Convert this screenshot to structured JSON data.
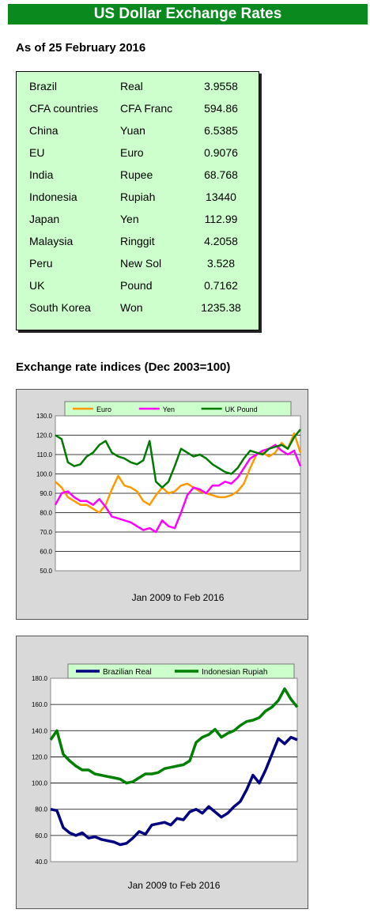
{
  "banner": "US Dollar Exchange Rates",
  "as_of": "As of 25 February 2016",
  "rates": [
    {
      "country": "Brazil",
      "currency": "Real",
      "value": "3.9558"
    },
    {
      "country": "CFA countries",
      "currency": "CFA Franc",
      "value": "594.86"
    },
    {
      "country": "China",
      "currency": "Yuan",
      "value": "6.5385"
    },
    {
      "country": "EU",
      "currency": "Euro",
      "value": "0.9076"
    },
    {
      "country": "India",
      "currency": "Rupee",
      "value": "68.768"
    },
    {
      "country": "Indonesia",
      "currency": "Rupiah",
      "value": "13440"
    },
    {
      "country": "Japan",
      "currency": "Yen",
      "value": "112.99"
    },
    {
      "country": "Malaysia",
      "currency": "Ringgit",
      "value": "4.2058"
    },
    {
      "country": "Peru",
      "currency": "New Sol",
      "value": "3.528"
    },
    {
      "country": "UK",
      "currency": "Pound",
      "value": "0.7162"
    },
    {
      "country": "South Korea",
      "currency": "Won",
      "value": "1235.38"
    }
  ],
  "section_title": "Exchange rate indices (Dec 2003=100)",
  "colors": {
    "banner": "#0a8a1e",
    "table_bg": "#ccffcc",
    "chart_frame": "#d9d9d9"
  },
  "chart_data": [
    {
      "type": "line",
      "title": "",
      "xlabel": "Jan 2009 to Feb 2016",
      "ylabel": "",
      "x_range": [
        "Jan 2009",
        "Feb 2016"
      ],
      "ylim": [
        50,
        130
      ],
      "yticks": [
        "50.0",
        "60.0",
        "70.0",
        "80.0",
        "90.0",
        "100.0",
        "110.0",
        "120.0",
        "130.0"
      ],
      "grid": true,
      "legend": "top",
      "series": [
        {
          "name": "Euro",
          "color": "#ff9900",
          "values": [
            96,
            93,
            88,
            86,
            84,
            84,
            82,
            80,
            84,
            92,
            99,
            94,
            93,
            91,
            86,
            84,
            89,
            93,
            90,
            91,
            94,
            95,
            93,
            91,
            90,
            89,
            88,
            88,
            89,
            91,
            95,
            103,
            110,
            111,
            109,
            111,
            116,
            113,
            121,
            111
          ]
        },
        {
          "name": "Yen",
          "color": "#ff00ff",
          "values": [
            84,
            90,
            91,
            88,
            86,
            86,
            84,
            87,
            83,
            78,
            77,
            76,
            75,
            73,
            71,
            72,
            70,
            76,
            73,
            72,
            80,
            89,
            93,
            92,
            90,
            94,
            94,
            96,
            95,
            98,
            103,
            108,
            110,
            112,
            113,
            115,
            112,
            110,
            112,
            104
          ]
        },
        {
          "name": "UK Pound",
          "color": "#007a00",
          "values": [
            120,
            118,
            106,
            104,
            105,
            109,
            111,
            115,
            117,
            111,
            109,
            108,
            106,
            105,
            107,
            117,
            96,
            93,
            96,
            104,
            113,
            111,
            109,
            110,
            108,
            105,
            103,
            101,
            100,
            103,
            108,
            112,
            111,
            110,
            113,
            114,
            115,
            113,
            119,
            123
          ]
        }
      ]
    },
    {
      "type": "line",
      "title": "",
      "xlabel": "Jan 2009 to Feb 2016",
      "ylabel": "",
      "x_range": [
        "Jan 2009",
        "Feb 2016"
      ],
      "ylim": [
        40,
        180
      ],
      "yticks": [
        "40.0",
        "60.0",
        "80.0",
        "100.0",
        "120.0",
        "140.0",
        "160.0",
        "180.0"
      ],
      "grid": true,
      "legend": "top",
      "series": [
        {
          "name": "Brazilian Real",
          "color": "#000080",
          "values": [
            80,
            79,
            66,
            62,
            60,
            62,
            58,
            59,
            57,
            56,
            55,
            53,
            54,
            58,
            63,
            61,
            68,
            69,
            70,
            68,
            73,
            72,
            78,
            80,
            77,
            82,
            78,
            74,
            77,
            82,
            86,
            95,
            106,
            100,
            110,
            122,
            134,
            130,
            135,
            133
          ]
        },
        {
          "name": "Indonesian Rupiah",
          "color": "#008000",
          "values": [
            133,
            140,
            122,
            117,
            113,
            110,
            110,
            107,
            106,
            105,
            104,
            103,
            100,
            101,
            104,
            107,
            107,
            108,
            111,
            112,
            113,
            114,
            117,
            131,
            135,
            137,
            141,
            135,
            138,
            140,
            144,
            147,
            148,
            150,
            155,
            158,
            163,
            172,
            164,
            158
          ]
        }
      ]
    }
  ]
}
